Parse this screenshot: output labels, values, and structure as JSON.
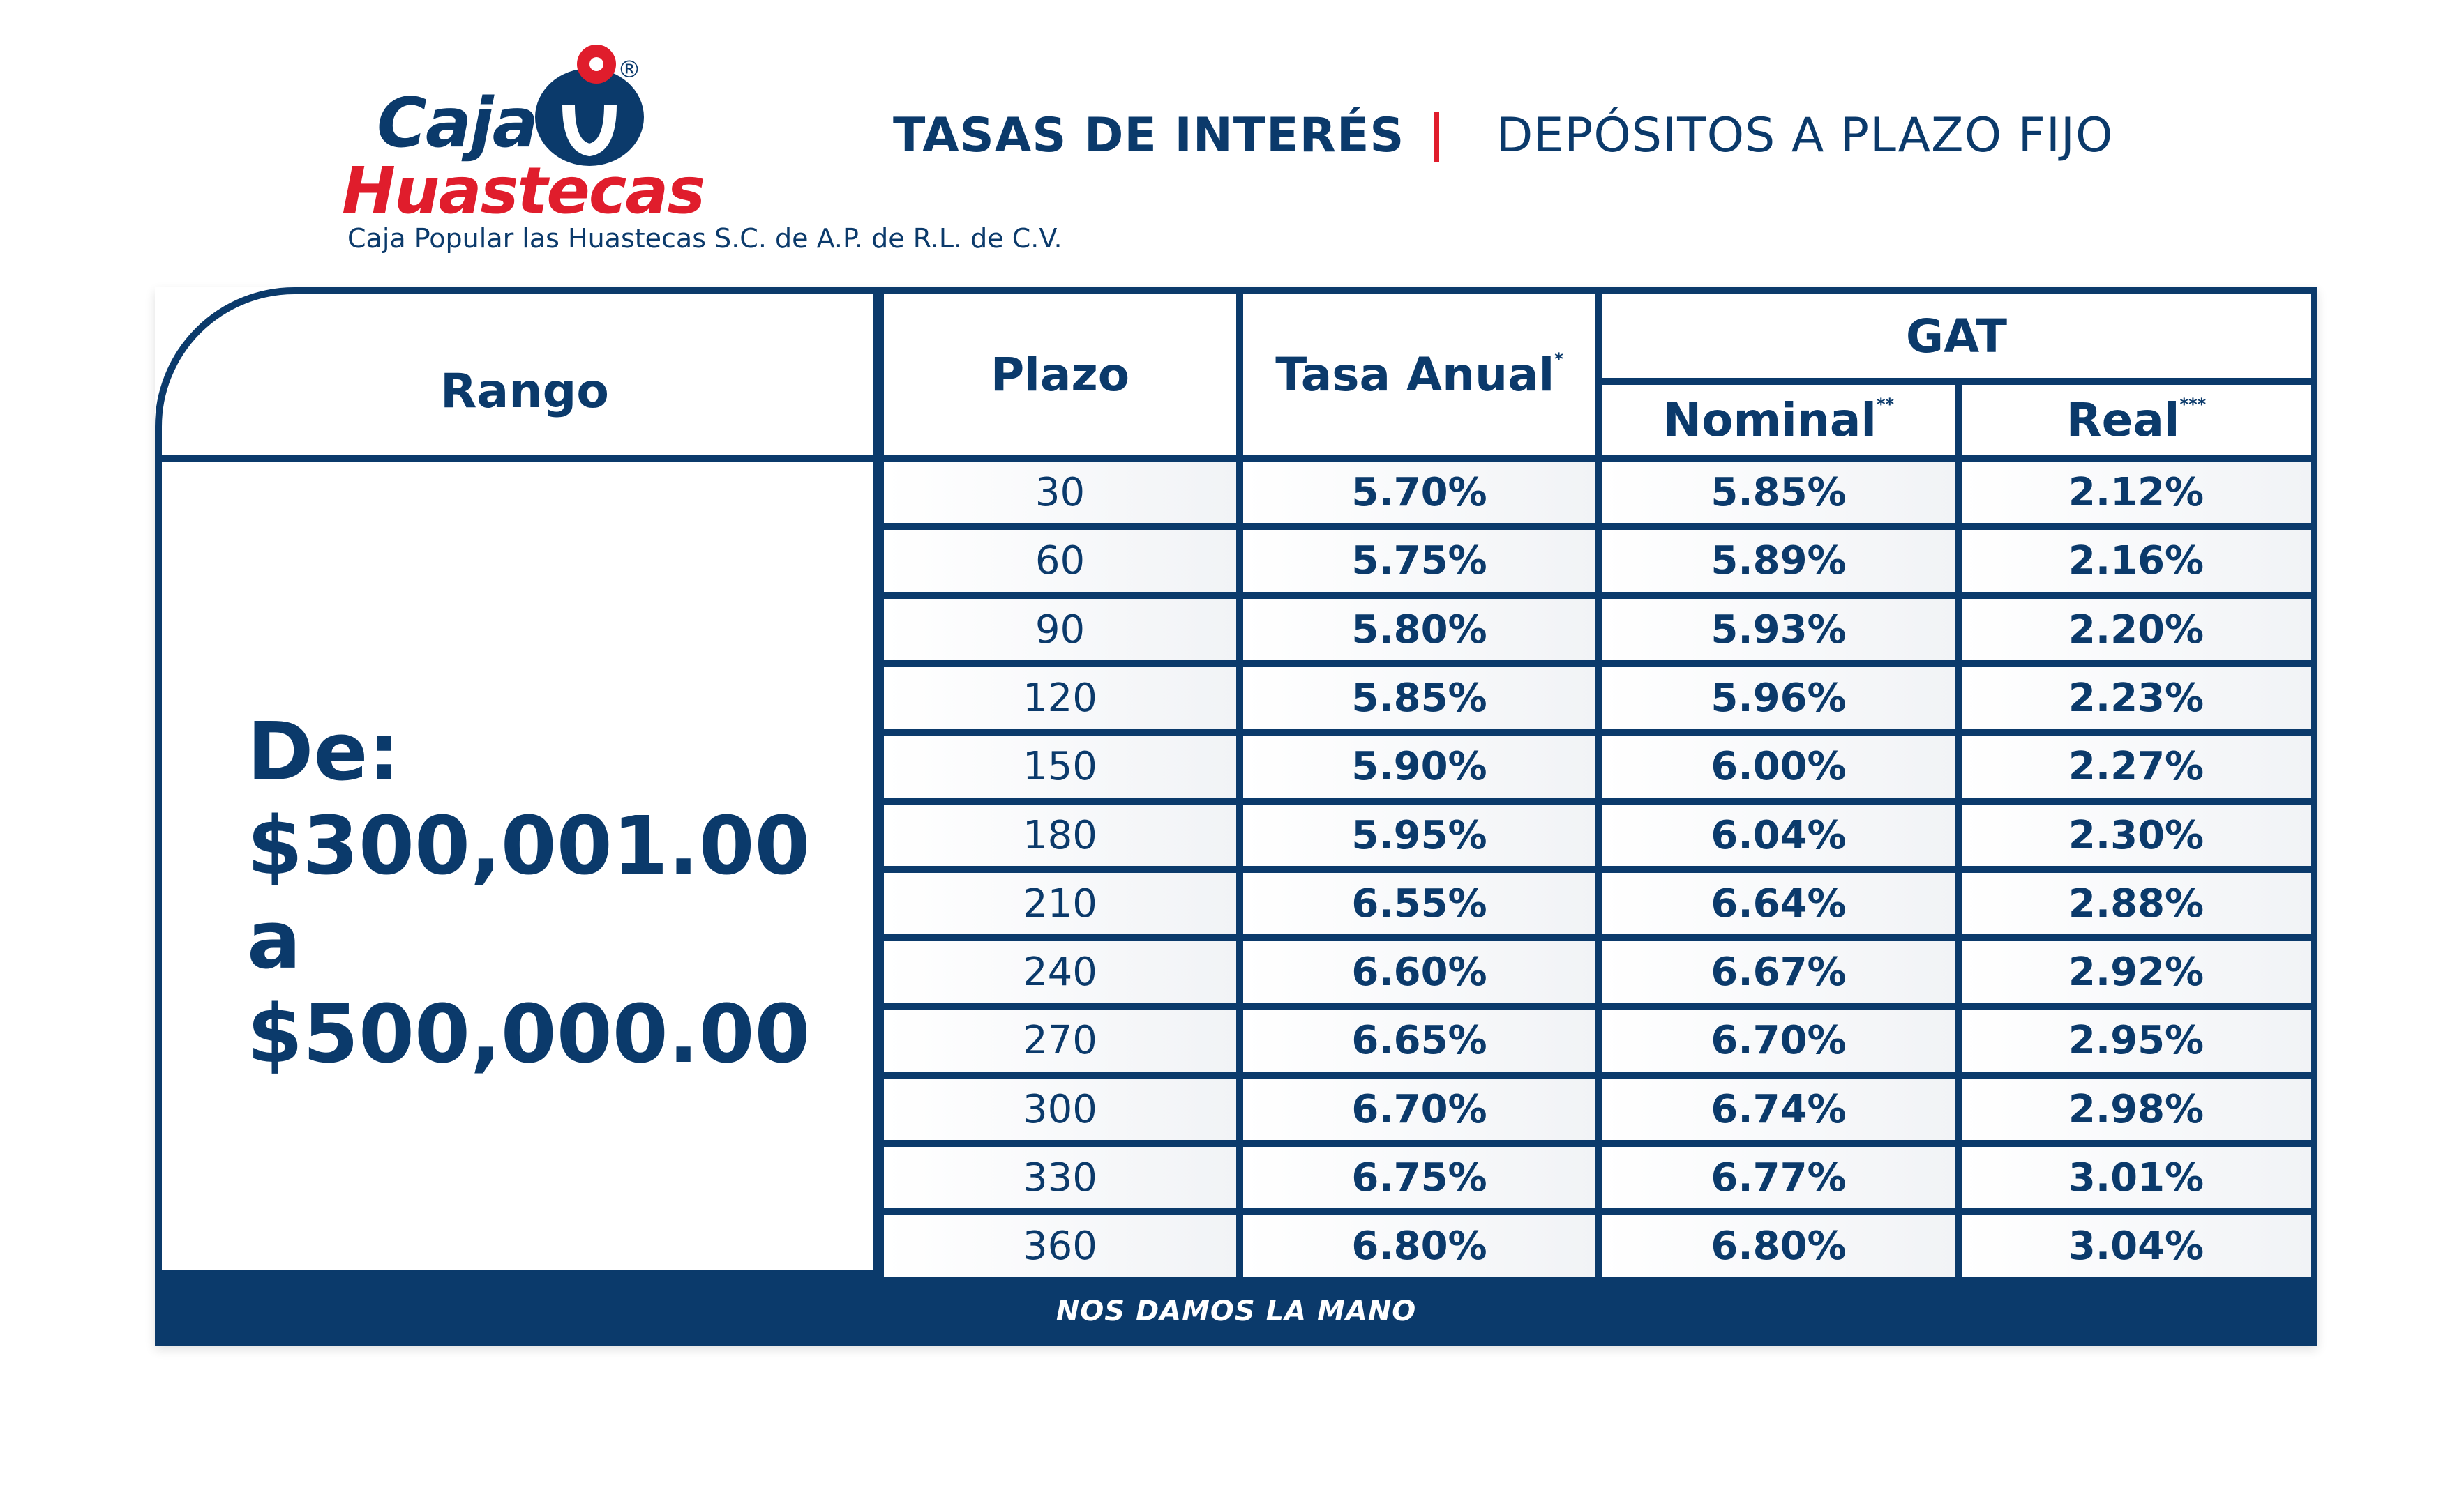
{
  "brand": {
    "logo_caja": "Caja",
    "logo_huastecas": "Huastecas",
    "registered": "®",
    "legal_name": "Caja Popular las Huastecas S.C. de A.P.  de R.L. de C.V.",
    "colors": {
      "navy": "#0b3a6b",
      "red": "#e01d2c"
    }
  },
  "header": {
    "title_left": "TASAS DE INTERÉS",
    "separator": "|",
    "title_right": "DEPÓSITOS A PLAZO FIJO"
  },
  "table": {
    "headers": {
      "rango": "Rango",
      "plazo": "Plazo",
      "tasa_anual": "Tasa Anual",
      "tasa_anual_mark": "*",
      "gat": "GAT",
      "nominal": "Nominal",
      "nominal_mark": "**",
      "real": "Real",
      "real_mark": "***"
    },
    "rango_value": {
      "line1": "De:",
      "line2": "$300,001.00",
      "line3": "a",
      "line4": "$500,000.00"
    },
    "rows": [
      {
        "plazo": "30",
        "tasa": "5.70%",
        "nominal": "5.85%",
        "real": "2.12%"
      },
      {
        "plazo": "60",
        "tasa": "5.75%",
        "nominal": "5.89%",
        "real": "2.16%"
      },
      {
        "plazo": "90",
        "tasa": "5.80%",
        "nominal": "5.93%",
        "real": "2.20%"
      },
      {
        "plazo": "120",
        "tasa": "5.85%",
        "nominal": "5.96%",
        "real": "2.23%"
      },
      {
        "plazo": "150",
        "tasa": "5.90%",
        "nominal": "6.00%",
        "real": "2.27%"
      },
      {
        "plazo": "180",
        "tasa": "5.95%",
        "nominal": "6.04%",
        "real": "2.30%"
      },
      {
        "plazo": "210",
        "tasa": "6.55%",
        "nominal": "6.64%",
        "real": "2.88%"
      },
      {
        "plazo": "240",
        "tasa": "6.60%",
        "nominal": "6.67%",
        "real": "2.92%"
      },
      {
        "plazo": "270",
        "tasa": "6.65%",
        "nominal": "6.70%",
        "real": "2.95%"
      },
      {
        "plazo": "300",
        "tasa": "6.70%",
        "nominal": "6.74%",
        "real": "2.98%"
      },
      {
        "plazo": "330",
        "tasa": "6.75%",
        "nominal": "6.77%",
        "real": "3.01%"
      },
      {
        "plazo": "360",
        "tasa": "6.80%",
        "nominal": "6.80%",
        "real": "3.04%"
      }
    ],
    "footer": "NOS DAMOS LA MANO"
  }
}
